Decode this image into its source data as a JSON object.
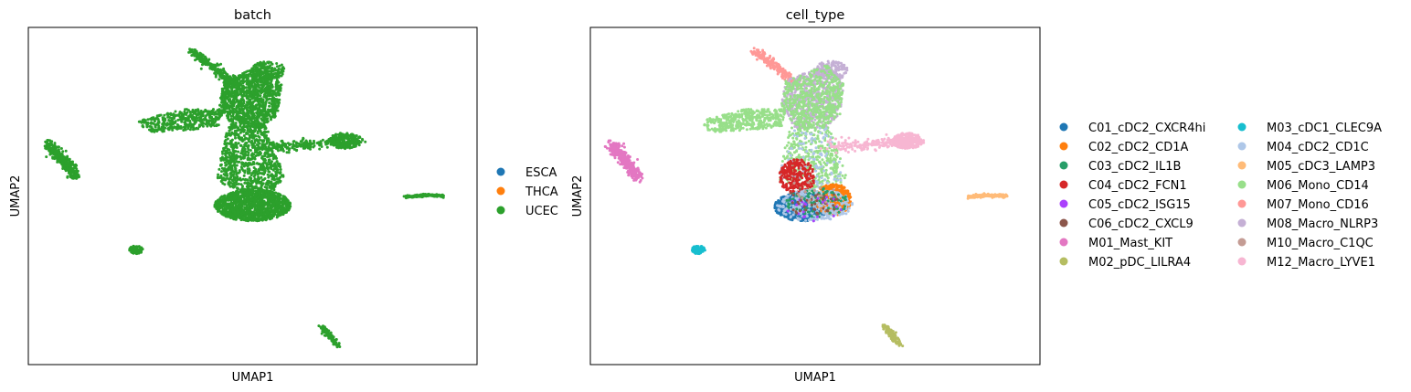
{
  "colors": {
    "ESCA": "#1f77b4",
    "THCA": "#ff7f0e",
    "UCEC": "#2ca02c",
    "C01_cDC2_CXCR4hi": "#1f77b4",
    "C02_cDC2_CD1A": "#ff7f0e",
    "C03_cDC2_IL1B": "#279e68",
    "C04_cDC2_FCN1": "#d62728",
    "C05_cDC2_ISG15": "#aa40fc",
    "C06_cDC2_CXCL9": "#8c564b",
    "M01_Mast_KIT": "#e377c2",
    "M02_pDC_LILRA4": "#b5bd61",
    "M03_cDC1_CLEC9A": "#17becf",
    "M04_cDC2_CD1C": "#aec7e8",
    "M05_cDC3_LAMP3": "#ffbb78",
    "M06_Mono_CD14": "#98df8a",
    "M07_Mono_CD16": "#ff9896",
    "M08_Macro_NLRP3": "#c5b0d5",
    "M10_Macro_C1QC": "#c49c94",
    "M12_Macro_LYVE1": "#f7b6d2"
  },
  "chart_data": [
    {
      "type": "scatter",
      "title": "batch",
      "xlabel": "UMAP1",
      "ylabel": "UMAP2",
      "grid": false,
      "legend_position": "right",
      "legend": [
        "ESCA",
        "THCA",
        "UCEC"
      ],
      "xlim": [
        -6.5,
        13.5
      ],
      "ylim": [
        -7.5,
        16.0
      ],
      "clusters": [
        {
          "label": "UCEC",
          "shape": "polyline",
          "path": [
            [
              0.8,
              14.3
            ],
            [
              1.8,
              13.2
            ],
            [
              2.7,
              12.0
            ]
          ],
          "spread": 0.25,
          "n": 260
        },
        {
          "label": "UCEC",
          "shape": "ellipse",
          "cx": 4.2,
          "cy": 13.0,
          "rx": 0.75,
          "ry": 0.65,
          "n": 160
        },
        {
          "label": "UCEC",
          "shape": "polygon",
          "poly": [
            [
              2.2,
              12.3
            ],
            [
              4.0,
              13.4
            ],
            [
              4.8,
              12.0
            ],
            [
              4.6,
              9.9
            ],
            [
              3.9,
              9.0
            ],
            [
              2.6,
              9.0
            ],
            [
              2.0,
              10.6
            ]
          ],
          "n": 1200
        },
        {
          "label": "UCEC",
          "shape": "polygon",
          "poly": [
            [
              -1.6,
              9.5
            ],
            [
              0.4,
              10.3
            ],
            [
              2.2,
              10.3
            ],
            [
              2.0,
              9.1
            ],
            [
              0.4,
              8.8
            ],
            [
              -1.2,
              8.7
            ]
          ],
          "n": 420
        },
        {
          "label": "UCEC",
          "shape": "polygon",
          "poly": [
            [
              2.4,
              9.1
            ],
            [
              4.1,
              9.1
            ],
            [
              4.6,
              7.0
            ],
            [
              4.9,
              5.5
            ],
            [
              4.5,
              4.5
            ],
            [
              3.0,
              4.5
            ],
            [
              1.9,
              5.3
            ],
            [
              2.1,
              7.2
            ]
          ],
          "n": 850
        },
        {
          "label": "UCEC",
          "shape": "polyline",
          "path": [
            [
              4.2,
              7.7
            ],
            [
              5.6,
              7.8
            ],
            [
              7.0,
              8.0
            ],
            [
              8.3,
              8.1
            ]
          ],
          "spread": 0.35,
          "n": 240
        },
        {
          "label": "UCEC",
          "shape": "ellipse",
          "cx": 7.6,
          "cy": 8.1,
          "rx": 0.7,
          "ry": 0.55,
          "n": 240
        },
        {
          "label": "UCEC",
          "shape": "ellipse",
          "cx": 3.5,
          "cy": 3.6,
          "rx": 1.7,
          "ry": 1.1,
          "n": 1200
        },
        {
          "label": "UCEC",
          "shape": "polyline",
          "path": [
            [
              -5.6,
              7.9
            ],
            [
              -5.2,
              7.2
            ],
            [
              -4.7,
              6.3
            ],
            [
              -4.4,
              5.5
            ]
          ],
          "spread": 0.28,
          "n": 380
        },
        {
          "label": "UCEC",
          "shape": "polyline",
          "path": [
            [
              10.3,
              4.2
            ],
            [
              11.2,
              4.3
            ],
            [
              12.0,
              4.25
            ]
          ],
          "spread": 0.1,
          "n": 150
        },
        {
          "label": "UCEC",
          "shape": "ellipse",
          "cx": -1.7,
          "cy": 0.5,
          "rx": 0.3,
          "ry": 0.28,
          "n": 100
        },
        {
          "label": "UCEC",
          "shape": "polyline",
          "path": [
            [
              6.6,
              -4.8
            ],
            [
              6.9,
              -5.4
            ],
            [
              7.3,
              -6.2
            ]
          ],
          "spread": 0.15,
          "n": 110
        }
      ]
    },
    {
      "type": "scatter",
      "title": "cell_type",
      "xlabel": "UMAP1",
      "ylabel": "UMAP2",
      "grid": false,
      "legend_position": "right",
      "legend_columns": 2,
      "legend": [
        "C01_cDC2_CXCR4hi",
        "C02_cDC2_CD1A",
        "C03_cDC2_IL1B",
        "C04_cDC2_FCN1",
        "C05_cDC2_ISG15",
        "C06_cDC2_CXCL9",
        "M01_Mast_KIT",
        "M02_pDC_LILRA4",
        "M03_cDC1_CLEC9A",
        "M04_cDC2_CD1C",
        "M05_cDC3_LAMP3",
        "M06_Mono_CD14",
        "M07_Mono_CD16",
        "M08_Macro_NLRP3",
        "M10_Macro_C1QC",
        "M12_Macro_LYVE1"
      ],
      "xlim": [
        -6.5,
        13.5
      ],
      "ylim": [
        -7.5,
        16.0
      ],
      "clusters": [
        {
          "label": "M07_Mono_CD16",
          "shape": "polyline",
          "path": [
            [
              0.8,
              14.3
            ],
            [
              1.8,
              13.2
            ],
            [
              2.7,
              12.0
            ]
          ],
          "spread": 0.25,
          "n": 220
        },
        {
          "label": "M08_Macro_NLRP3",
          "shape": "ellipse",
          "cx": 4.2,
          "cy": 13.0,
          "rx": 0.75,
          "ry": 0.65,
          "n": 150
        },
        {
          "label": "M08_Macro_NLRP3",
          "shape": "polygon",
          "poly": [
            [
              2.2,
              12.3
            ],
            [
              4.0,
              13.4
            ],
            [
              4.8,
              12.0
            ],
            [
              4.6,
              9.9
            ],
            [
              3.9,
              9.0
            ],
            [
              2.6,
              9.0
            ],
            [
              2.0,
              10.6
            ]
          ],
          "n": 600
        },
        {
          "label": "M06_Mono_CD14",
          "shape": "polygon",
          "poly": [
            [
              2.2,
              12.3
            ],
            [
              4.0,
              13.4
            ],
            [
              4.8,
              12.0
            ],
            [
              4.6,
              9.9
            ],
            [
              3.9,
              9.0
            ],
            [
              2.6,
              9.0
            ],
            [
              2.0,
              10.6
            ]
          ],
          "n": 550
        },
        {
          "label": "M06_Mono_CD14",
          "shape": "polygon",
          "poly": [
            [
              -1.6,
              9.5
            ],
            [
              0.4,
              10.3
            ],
            [
              2.2,
              10.3
            ],
            [
              2.0,
              9.1
            ],
            [
              0.4,
              8.8
            ],
            [
              -1.2,
              8.7
            ]
          ],
          "n": 420
        },
        {
          "label": "M06_Mono_CD14",
          "shape": "polygon",
          "poly": [
            [
              2.4,
              9.1
            ],
            [
              4.1,
              9.1
            ],
            [
              4.6,
              7.0
            ],
            [
              4.9,
              5.5
            ],
            [
              4.5,
              4.5
            ],
            [
              3.0,
              4.5
            ],
            [
              1.9,
              5.3
            ],
            [
              2.1,
              7.2
            ]
          ],
          "n": 450
        },
        {
          "label": "M04_cDC2_CD1C",
          "shape": "polygon",
          "poly": [
            [
              2.4,
              9.1
            ],
            [
              4.1,
              9.1
            ],
            [
              4.6,
              7.0
            ],
            [
              4.9,
              5.5
            ],
            [
              4.5,
              4.5
            ],
            [
              3.0,
              4.5
            ],
            [
              1.9,
              5.3
            ],
            [
              2.1,
              7.2
            ]
          ],
          "n": 120
        },
        {
          "label": "M12_Macro_LYVE1",
          "shape": "polyline",
          "path": [
            [
              4.2,
              7.7
            ],
            [
              5.6,
              7.8
            ],
            [
              7.0,
              8.0
            ],
            [
              8.3,
              8.1
            ]
          ],
          "spread": 0.35,
          "n": 220
        },
        {
          "label": "M12_Macro_LYVE1",
          "shape": "ellipse",
          "cx": 7.6,
          "cy": 8.1,
          "rx": 0.7,
          "ry": 0.55,
          "n": 240
        },
        {
          "label": "C04_cDC2_FCN1",
          "shape": "ellipse",
          "cx": 2.7,
          "cy": 5.6,
          "rx": 0.8,
          "ry": 1.2,
          "n": 260
        },
        {
          "label": "C01_cDC2_CXCR4hi",
          "shape": "ellipse",
          "cx": 2.9,
          "cy": 3.5,
          "rx": 1.2,
          "ry": 1.0,
          "n": 600
        },
        {
          "label": "C02_cDC2_CD1A",
          "shape": "ellipse",
          "cx": 4.3,
          "cy": 4.0,
          "rx": 0.8,
          "ry": 1.1,
          "n": 400
        },
        {
          "label": "M04_cDC2_CD1C",
          "shape": "ellipse",
          "cx": 3.5,
          "cy": 3.6,
          "rx": 1.7,
          "ry": 1.1,
          "n": 320
        },
        {
          "label": "C03_cDC2_IL1B",
          "shape": "ellipse",
          "cx": 3.6,
          "cy": 3.8,
          "rx": 1.4,
          "ry": 1.0,
          "n": 90
        },
        {
          "label": "C05_cDC2_ISG15",
          "shape": "ellipse",
          "cx": 3.5,
          "cy": 3.4,
          "rx": 1.3,
          "ry": 0.9,
          "n": 25
        },
        {
          "label": "C06_cDC2_CXCL9",
          "shape": "ellipse",
          "cx": 3.3,
          "cy": 3.8,
          "rx": 1.3,
          "ry": 1.0,
          "n": 40
        },
        {
          "label": "M01_Mast_KIT",
          "shape": "polyline",
          "path": [
            [
              -5.6,
              7.9
            ],
            [
              -5.2,
              7.2
            ],
            [
              -4.7,
              6.3
            ],
            [
              -4.4,
              5.5
            ]
          ],
          "spread": 0.28,
          "n": 380
        },
        {
          "label": "M05_cDC3_LAMP3",
          "shape": "polyline",
          "path": [
            [
              10.3,
              4.2
            ],
            [
              11.2,
              4.3
            ],
            [
              12.0,
              4.25
            ]
          ],
          "spread": 0.1,
          "n": 150
        },
        {
          "label": "M03_cDC1_CLEC9A",
          "shape": "ellipse",
          "cx": -1.7,
          "cy": 0.5,
          "rx": 0.3,
          "ry": 0.28,
          "n": 100
        },
        {
          "label": "M02_pDC_LILRA4",
          "shape": "polyline",
          "path": [
            [
              6.6,
              -4.8
            ],
            [
              6.9,
              -5.4
            ],
            [
              7.3,
              -6.2
            ]
          ],
          "spread": 0.15,
          "n": 110
        },
        {
          "label": "M10_Macro_C1QC",
          "shape": "ellipse",
          "cx": 3.3,
          "cy": 4.5,
          "rx": 1.2,
          "ry": 1.0,
          "n": 15
        }
      ]
    }
  ]
}
